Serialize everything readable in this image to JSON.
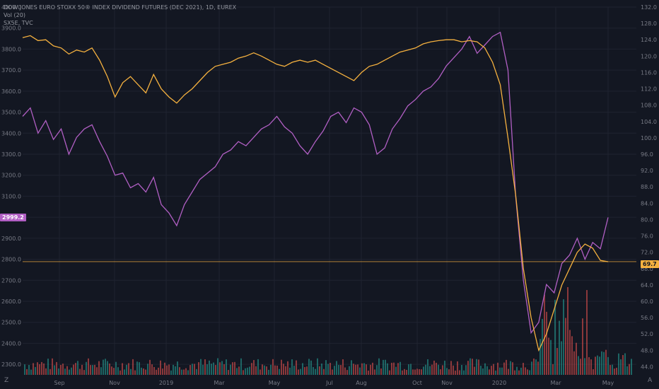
{
  "legend": {
    "line1": "DOW JONES EURO STOXX 50® INDEX DIVIDEND FUTURES (DEC 2021), 1D, EUREX",
    "line2": "Vol (20)",
    "line3": "SX5E, TVC"
  },
  "price_tags": {
    "left": "2999.2",
    "right": "69.7"
  },
  "corner_labels": {
    "left": "Z",
    "right": "A"
  },
  "colors": {
    "background": "#131722",
    "sx5e_line": "#b15fc4",
    "futures_line": "#f5b13f",
    "volume_up": "#26a69a",
    "volume_down": "#ef5350",
    "grid": "#1f2330"
  },
  "chart_data": {
    "type": "line",
    "x_labels": [
      "Sep",
      "Nov",
      "2019",
      "Mar",
      "May",
      "Jul",
      "Aug",
      "Oct",
      "Nov",
      "2020",
      "Mar",
      "May"
    ],
    "left_axis": {
      "ticks": [
        "4000.0",
        "3900.0",
        "3800.0",
        "3700.0",
        "3600.0",
        "3500.0",
        "3400.0",
        "3300.0",
        "3200.0",
        "3100.0",
        "3000.0",
        "2900.0",
        "2800.0",
        "2700.0",
        "2600.0",
        "2500.0",
        "2400.0",
        "2300.0"
      ],
      "range": [
        2250,
        4000
      ]
    },
    "right_axis": {
      "ticks": [
        "132.0",
        "128.0",
        "124.0",
        "120.0",
        "116.0",
        "112.0",
        "108.0",
        "104.0",
        "100.0",
        "96.0",
        "92.0",
        "88.0",
        "84.0",
        "80.0",
        "76.0",
        "72.0",
        "68.0",
        "64.0",
        "60.0",
        "56.0",
        "52.0",
        "48.0",
        "44.0"
      ],
      "range": [
        42,
        132
      ]
    },
    "series": [
      {
        "name": "SX5E, TVC",
        "axis": "left",
        "points": [
          [
            0,
            3480
          ],
          [
            2,
            3520
          ],
          [
            4,
            3400
          ],
          [
            6,
            3460
          ],
          [
            8,
            3370
          ],
          [
            10,
            3420
          ],
          [
            12,
            3300
          ],
          [
            14,
            3380
          ],
          [
            16,
            3420
          ],
          [
            18,
            3440
          ],
          [
            20,
            3360
          ],
          [
            22,
            3290
          ],
          [
            24,
            3200
          ],
          [
            26,
            3210
          ],
          [
            28,
            3140
          ],
          [
            30,
            3160
          ],
          [
            32,
            3120
          ],
          [
            34,
            3190
          ],
          [
            36,
            3060
          ],
          [
            38,
            3020
          ],
          [
            40,
            2960
          ],
          [
            42,
            3060
          ],
          [
            44,
            3120
          ],
          [
            46,
            3180
          ],
          [
            48,
            3210
          ],
          [
            50,
            3240
          ],
          [
            52,
            3300
          ],
          [
            54,
            3320
          ],
          [
            56,
            3360
          ],
          [
            58,
            3340
          ],
          [
            60,
            3380
          ],
          [
            62,
            3420
          ],
          [
            64,
            3440
          ],
          [
            66,
            3480
          ],
          [
            68,
            3430
          ],
          [
            70,
            3400
          ],
          [
            72,
            3340
          ],
          [
            74,
            3300
          ],
          [
            76,
            3360
          ],
          [
            78,
            3410
          ],
          [
            80,
            3480
          ],
          [
            82,
            3500
          ],
          [
            84,
            3450
          ],
          [
            86,
            3520
          ],
          [
            88,
            3500
          ],
          [
            90,
            3440
          ],
          [
            92,
            3300
          ],
          [
            94,
            3330
          ],
          [
            96,
            3420
          ],
          [
            98,
            3470
          ],
          [
            100,
            3530
          ],
          [
            102,
            3560
          ],
          [
            104,
            3600
          ],
          [
            106,
            3620
          ],
          [
            108,
            3660
          ],
          [
            110,
            3720
          ],
          [
            112,
            3760
          ],
          [
            114,
            3800
          ],
          [
            116,
            3860
          ],
          [
            118,
            3780
          ],
          [
            120,
            3820
          ],
          [
            122,
            3860
          ],
          [
            124,
            3880
          ],
          [
            126,
            3700
          ],
          [
            128,
            3100
          ],
          [
            130,
            2700
          ],
          [
            132,
            2450
          ],
          [
            134,
            2500
          ],
          [
            136,
            2680
          ],
          [
            138,
            2640
          ],
          [
            140,
            2780
          ],
          [
            142,
            2820
          ],
          [
            144,
            2900
          ],
          [
            146,
            2800
          ],
          [
            148,
            2880
          ],
          [
            150,
            2850
          ],
          [
            152,
            2999
          ]
        ]
      },
      {
        "name": "DEC 2021 Dividend Futures",
        "axis": "right",
        "points": [
          [
            0,
            124.5
          ],
          [
            2,
            125.0
          ],
          [
            4,
            123.8
          ],
          [
            6,
            124.0
          ],
          [
            8,
            122.5
          ],
          [
            10,
            122.0
          ],
          [
            12,
            120.5
          ],
          [
            14,
            121.5
          ],
          [
            16,
            121.0
          ],
          [
            18,
            122.0
          ],
          [
            20,
            119.0
          ],
          [
            22,
            115.0
          ],
          [
            24,
            110.0
          ],
          [
            26,
            113.5
          ],
          [
            28,
            115.0
          ],
          [
            30,
            113.0
          ],
          [
            32,
            111.0
          ],
          [
            34,
            115.5
          ],
          [
            36,
            112.0
          ],
          [
            38,
            110.0
          ],
          [
            40,
            108.5
          ],
          [
            42,
            110.5
          ],
          [
            44,
            112.0
          ],
          [
            46,
            114.0
          ],
          [
            48,
            116.0
          ],
          [
            50,
            117.5
          ],
          [
            52,
            118.0
          ],
          [
            54,
            118.5
          ],
          [
            56,
            119.5
          ],
          [
            58,
            120.0
          ],
          [
            60,
            120.8
          ],
          [
            62,
            120.0
          ],
          [
            64,
            119.0
          ],
          [
            66,
            118.0
          ],
          [
            68,
            117.5
          ],
          [
            70,
            118.5
          ],
          [
            72,
            119.0
          ],
          [
            74,
            118.5
          ],
          [
            76,
            119.0
          ],
          [
            78,
            118.0
          ],
          [
            80,
            117.0
          ],
          [
            82,
            116.0
          ],
          [
            84,
            115.0
          ],
          [
            86,
            114.0
          ],
          [
            88,
            116.0
          ],
          [
            90,
            117.5
          ],
          [
            92,
            118.0
          ],
          [
            94,
            119.0
          ],
          [
            96,
            120.0
          ],
          [
            98,
            121.0
          ],
          [
            100,
            121.5
          ],
          [
            102,
            122.0
          ],
          [
            104,
            123.0
          ],
          [
            106,
            123.5
          ],
          [
            108,
            123.8
          ],
          [
            110,
            124.0
          ],
          [
            112,
            124.0
          ],
          [
            114,
            123.5
          ],
          [
            116,
            123.8
          ],
          [
            118,
            123.5
          ],
          [
            120,
            122.0
          ],
          [
            122,
            118.5
          ],
          [
            124,
            113.0
          ],
          [
            126,
            100.0
          ],
          [
            128,
            86.0
          ],
          [
            130,
            68.0
          ],
          [
            132,
            56.0
          ],
          [
            134,
            48.0
          ],
          [
            136,
            52.0
          ],
          [
            138,
            58.0
          ],
          [
            140,
            64.0
          ],
          [
            142,
            68.0
          ],
          [
            144,
            72.0
          ],
          [
            146,
            74.0
          ],
          [
            148,
            73.0
          ],
          [
            150,
            70.0
          ],
          [
            152,
            69.7
          ]
        ]
      }
    ],
    "volume": {
      "note": "daily volume bars in the lower pane, spike during March 2020",
      "max_relative": 1.0
    }
  }
}
